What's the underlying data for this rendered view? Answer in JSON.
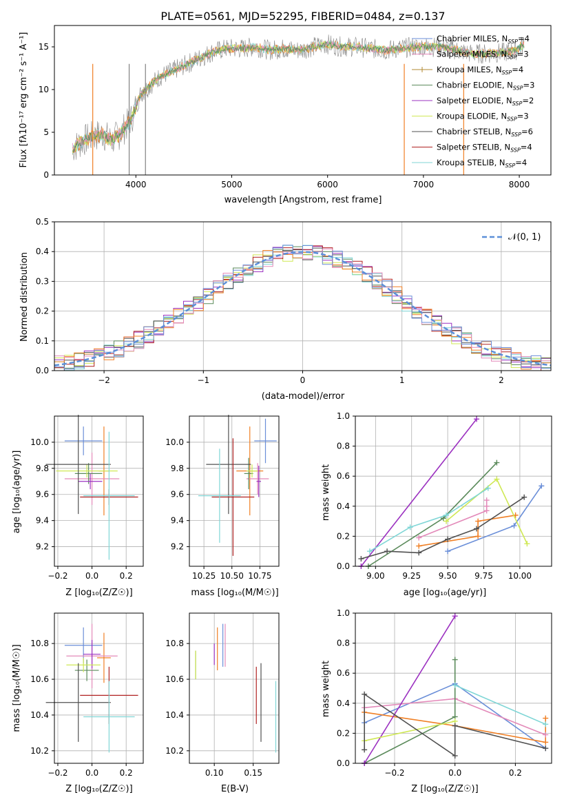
{
  "colors": [
    "#6a8ed8",
    "#e8831a",
    "#8d8d2a",
    "#4f8a4f",
    "#9b30c0",
    "#cfe854",
    "#505050",
    "#b02020",
    "#7fd6d6"
  ],
  "palette": {
    "blue": "#6a8ed8",
    "orange": "#f07f24",
    "pink": "#e389b9",
    "green": "#5a8a5a",
    "purple": "#9b30c0",
    "yellowgreen": "#cfe854",
    "darkgray": "#505050",
    "red": "#b02020",
    "cyan": "#7fd6d6",
    "gray": "#808080"
  },
  "spectrum_label": "PLATE=0561, MJD=52295, FIBERID=0484, z=0.137",
  "panel_titles": {
    "spectrum_xlabel": "wavelength [Angstrom, rest frame]",
    "spectrum_ylabel": "Flux [fλ10⁻¹⁷ erg cm⁻² s⁻¹ A⁻¹]",
    "hist_xlabel": "(data-model)/error",
    "hist_ylabel": "Normed distribution",
    "age_ylabel": "age  [log₁₀(age/yr)]",
    "z_xlabel": "Z [log₁₀(Z/Z☉)]",
    "mass_xlabel": "mass [log₁₀(M/M☉)]",
    "mass_ylabel": "mass [log₁₀(M/M☉)]",
    "mw_ylabel": "mass weight",
    "age_xlabel": "age  [log₁₀(age/yr)]",
    "ebv_xlabel": "E(B-V)",
    "z2_xlabel": "Z [log₁₀(Z/Z☉)]"
  },
  "legend_spectrum": [
    {
      "name": "Chabrier MILES, N",
      "sub": "SSP",
      "tail": "=4"
    },
    {
      "name": "Salpeter MILES, N",
      "sub": "SSP",
      "tail": "=3"
    },
    {
      "name": "Kroupa MILES, N",
      "sub": "SSP",
      "tail": "=4"
    },
    {
      "name": "Chabrier ELODIE, N",
      "sub": "SSP",
      "tail": "=3"
    },
    {
      "name": "Salpeter ELODIE, N",
      "sub": "SSP",
      "tail": "=2"
    },
    {
      "name": "Kroupa ELODIE, N",
      "sub": "SSP",
      "tail": "=3"
    },
    {
      "name": "Chabrier STELIB, N",
      "sub": "SSP",
      "tail": "=6"
    },
    {
      "name": "Salpeter STELIB, N",
      "sub": "SSP",
      "tail": "=4"
    },
    {
      "name": "Kroupa STELIB, N",
      "sub": "SSP",
      "tail": "=4"
    }
  ],
  "legend_spectrum_colors": [
    "#6a8ed8",
    "#e389b9",
    "#b08a30",
    "#5a8a5a",
    "#9b30c0",
    "#cfe854",
    "#505050",
    "#b02020",
    "#7fd6d6"
  ],
  "legend_hist": "𝒩(0, 1)",
  "chart_data": [
    {
      "id": "spectrum",
      "type": "line",
      "title": "PLATE=0561, MJD=52295, FIBERID=0484, z=0.137",
      "xlabel": "wavelength [Angstrom, rest frame]",
      "ylabel": "Flux",
      "xlim": [
        3150,
        8330
      ],
      "ylim": [
        0,
        17.5
      ],
      "xticks": [
        4000,
        5000,
        6000,
        7000,
        8000
      ],
      "yticks": [
        0,
        5,
        10,
        15
      ],
      "x": [
        3350,
        3450,
        3550,
        3650,
        3750,
        3850,
        3950,
        4050,
        4150,
        4250,
        4350,
        4500,
        4650,
        4800,
        4950,
        5100,
        5250,
        5400,
        5550,
        5700,
        5850,
        6000,
        6150,
        6300,
        6450,
        6600,
        6750,
        6900,
        7050,
        7200,
        7350,
        7500,
        7650,
        7800,
        7950,
        8050
      ],
      "y": [
        3.2,
        4.0,
        4.5,
        4.8,
        4.0,
        5.0,
        6.5,
        9.5,
        10.5,
        11.5,
        12.0,
        12.8,
        13.6,
        14.4,
        14.8,
        14.8,
        15.0,
        14.6,
        14.8,
        14.6,
        15.0,
        15.3,
        15.0,
        15.0,
        14.8,
        14.6,
        14.8,
        15.0,
        15.0,
        15.0,
        14.6,
        14.2,
        14.2,
        14.3,
        14.5,
        15.3
      ],
      "grid": false,
      "legend": "top-right"
    },
    {
      "id": "hist",
      "type": "step",
      "xlabel": "(data-model)/error",
      "ylabel": "Normed distribution",
      "xlim": [
        -2.5,
        2.5
      ],
      "ylim": [
        0,
        0.5
      ],
      "xticks": [
        -2,
        -1,
        0,
        1,
        2
      ],
      "yticks": [
        0.0,
        0.1,
        0.2,
        0.3,
        0.4,
        0.5
      ],
      "bin_width": 0.1,
      "grid": true,
      "legend": "top-right"
    },
    {
      "id": "z_age",
      "type": "errorbar",
      "xlabel": "Z [log10(Z/Zsun)]",
      "ylabel": "age [log10(age/yr)]",
      "xlim": [
        -0.22,
        0.3
      ],
      "ylim": [
        9.05,
        10.2
      ],
      "xticks": [
        -0.2,
        0.0,
        0.2
      ],
      "yticks": [
        9.2,
        9.4,
        9.6,
        9.8,
        10.0
      ],
      "points": [
        {
          "x": -0.05,
          "y": 10.01,
          "xerr": 0.11,
          "yerr": 0.11,
          "c": "blue"
        },
        {
          "x": 0.07,
          "y": 9.78,
          "xerr": 0.03,
          "yerr": 0.34,
          "c": "orange"
        },
        {
          "x": 0.0,
          "y": 9.72,
          "xerr": 0.16,
          "yerr": 0.2,
          "c": "pink"
        },
        {
          "x": -0.02,
          "y": 9.76,
          "xerr": 0.08,
          "yerr": 0.08,
          "c": "green"
        },
        {
          "x": -0.01,
          "y": 9.7,
          "xerr": 0.07,
          "yerr": 0.06,
          "c": "purple"
        },
        {
          "x": -0.03,
          "y": 9.78,
          "xerr": 0.18,
          "yerr": 0.05,
          "c": "yellowgreen"
        },
        {
          "x": -0.08,
          "y": 9.83,
          "xerr": 0.19,
          "yerr": 0.38,
          "c": "darkgray"
        },
        {
          "x": 0.1,
          "y": 9.58,
          "xerr": 0.17,
          "yerr": 0.06,
          "c": "red"
        },
        {
          "x": 0.1,
          "y": 9.59,
          "xerr": 0.15,
          "yerr": 0.49,
          "c": "cyan"
        }
      ]
    },
    {
      "id": "mass_age",
      "type": "errorbar",
      "xlabel": "mass [log10(M/Msun)]",
      "ylabel": "",
      "xlim": [
        10.12,
        10.92
      ],
      "ylim": [
        9.05,
        10.2
      ],
      "xticks": [
        10.25,
        10.5,
        10.75
      ],
      "yticks": [
        9.2,
        9.4,
        9.6,
        9.8,
        10.0
      ],
      "points": [
        {
          "x": 10.8,
          "y": 10.01,
          "xerr": 0.1,
          "yerr": 0.17,
          "c": "blue"
        },
        {
          "x": 10.66,
          "y": 9.78,
          "xerr": 0.12,
          "yerr": 0.34,
          "c": "orange"
        },
        {
          "x": 10.73,
          "y": 9.72,
          "xerr": 0.1,
          "yerr": 0.12,
          "c": "pink"
        },
        {
          "x": 10.65,
          "y": 9.76,
          "xerr": 0.04,
          "yerr": 0.12,
          "c": "green"
        },
        {
          "x": 10.74,
          "y": 9.7,
          "xerr": 0.02,
          "yerr": 0.12,
          "c": "purple"
        },
        {
          "x": 10.68,
          "y": 9.78,
          "xerr": 0.05,
          "yerr": 0.05,
          "c": "yellowgreen"
        },
        {
          "x": 10.47,
          "y": 9.83,
          "xerr": 0.2,
          "yerr": 0.38,
          "c": "darkgray"
        },
        {
          "x": 10.51,
          "y": 9.58,
          "xerr": 0.19,
          "yerr": 0.45,
          "c": "red"
        },
        {
          "x": 10.39,
          "y": 9.59,
          "xerr": 0.19,
          "yerr": 0.36,
          "c": "cyan"
        }
      ]
    },
    {
      "id": "age_mw",
      "type": "line",
      "xlabel": "age [log10(age/yr)]",
      "ylabel": "mass weight",
      "xlim": [
        8.86,
        10.22
      ],
      "ylim": [
        0,
        1
      ],
      "xticks": [
        9.0,
        9.25,
        9.5,
        9.75,
        10.0
      ],
      "yticks": [
        0.0,
        0.2,
        0.4,
        0.6,
        0.8,
        1.0
      ],
      "grid": true,
      "series": [
        {
          "c": "blue",
          "x": [
            9.5,
            9.96,
            10.15
          ],
          "y": [
            0.1,
            0.27,
            0.535
          ]
        },
        {
          "c": "orange",
          "x": [
            9.3,
            9.71,
            9.71,
            9.97
          ],
          "y": [
            0.135,
            0.2,
            0.3,
            0.34
          ]
        },
        {
          "c": "pink",
          "x": [
            9.3,
            9.77,
            9.77,
            9.77
          ],
          "y": [
            0.19,
            0.37,
            0.4,
            0.44
          ]
        },
        {
          "c": "green",
          "x": [
            8.95,
            9.47,
            9.84
          ],
          "y": [
            0.0,
            0.32,
            0.69
          ]
        },
        {
          "c": "purple",
          "x": [
            8.9,
            9.7
          ],
          "y": [
            0.0,
            0.98
          ]
        },
        {
          "c": "yellowgreen",
          "x": [
            9.49,
            9.84,
            10.05
          ],
          "y": [
            0.3,
            0.58,
            0.15
          ]
        },
        {
          "c": "darkgray",
          "x": [
            8.9,
            9.08,
            9.3,
            9.5,
            9.7,
            10.03
          ],
          "y": [
            0.05,
            0.1,
            0.09,
            0.18,
            0.25,
            0.46
          ]
        },
        {
          "c": "cyan",
          "x": [
            8.96,
            9.24,
            9.49,
            9.78
          ],
          "y": [
            0.1,
            0.26,
            0.34,
            0.52
          ]
        }
      ]
    },
    {
      "id": "z_mass",
      "type": "errorbar",
      "xlabel": "Z [log10(Z/Zsun)]",
      "ylabel": "mass [log10(M/Msun)]",
      "xlim": [
        -0.22,
        0.3
      ],
      "ylim": [
        10.13,
        10.97
      ],
      "xticks": [
        -0.2,
        0.0,
        0.2
      ],
      "yticks": [
        10.2,
        10.4,
        10.6,
        10.8
      ],
      "points": [
        {
          "x": -0.05,
          "y": 10.79,
          "xerr": 0.11,
          "yerr": 0.1,
          "c": "blue"
        },
        {
          "x": 0.07,
          "y": 10.72,
          "xerr": 0.04,
          "yerr": 0.14,
          "c": "orange"
        },
        {
          "x": 0.0,
          "y": 10.73,
          "xerr": 0.15,
          "yerr": 0.18,
          "c": "pink"
        },
        {
          "x": -0.03,
          "y": 10.65,
          "xerr": 0.07,
          "yerr": 0.06,
          "c": "green"
        },
        {
          "x": 0.0,
          "y": 10.74,
          "xerr": 0.05,
          "yerr": 0.08,
          "c": "purple"
        },
        {
          "x": -0.05,
          "y": 10.68,
          "xerr": 0.1,
          "yerr": 0.04,
          "c": "yellowgreen"
        },
        {
          "x": -0.08,
          "y": 10.47,
          "xerr": 0.19,
          "yerr": 0.22,
          "c": "darkgray"
        },
        {
          "x": 0.1,
          "y": 10.51,
          "xerr": 0.17,
          "yerr": 0.16,
          "c": "red"
        },
        {
          "x": 0.1,
          "y": 10.39,
          "xerr": 0.15,
          "yerr": 0.2,
          "c": "cyan"
        }
      ]
    },
    {
      "id": "ebv_mass",
      "type": "errorbar",
      "xlabel": "E(B-V)",
      "ylabel": "",
      "xlim": [
        0.068,
        0.183
      ],
      "ylim": [
        10.13,
        10.97
      ],
      "xticks": [
        0.1,
        0.15
      ],
      "yticks": [
        10.2,
        10.4,
        10.6,
        10.8
      ],
      "points": [
        {
          "x": 0.111,
          "y": 10.79,
          "xerr": 0,
          "yerr": 0.12,
          "c": "blue"
        },
        {
          "x": 0.104,
          "y": 10.77,
          "xerr": 0,
          "yerr": 0.12,
          "c": "orange"
        },
        {
          "x": 0.114,
          "y": 10.79,
          "xerr": 0,
          "yerr": 0.12,
          "c": "pink"
        },
        {
          "x": 0.076,
          "y": 10.68,
          "xerr": 0,
          "yerr": 0.08,
          "c": "green"
        },
        {
          "x": 0.1,
          "y": 10.74,
          "xerr": 0,
          "yerr": 0.06,
          "c": "purple"
        },
        {
          "x": 0.076,
          "y": 10.68,
          "xerr": 0,
          "yerr": 0.08,
          "c": "yellowgreen"
        },
        {
          "x": 0.16,
          "y": 10.47,
          "xerr": 0,
          "yerr": 0.22,
          "c": "darkgray"
        },
        {
          "x": 0.154,
          "y": 10.51,
          "xerr": 0,
          "yerr": 0.16,
          "c": "red"
        },
        {
          "x": 0.179,
          "y": 10.39,
          "xerr": 0,
          "yerr": 0.2,
          "c": "cyan"
        }
      ]
    },
    {
      "id": "z_mw",
      "type": "line",
      "xlabel": "Z [log10(Z/Zsun)]",
      "ylabel": "mass weight",
      "xlim": [
        -0.33,
        0.32
      ],
      "ylim": [
        0,
        1
      ],
      "xticks": [
        -0.2,
        0.0,
        0.2
      ],
      "yticks": [
        0.0,
        0.2,
        0.4,
        0.6,
        0.8,
        1.0
      ],
      "grid": true,
      "series": [
        {
          "c": "blue",
          "x": [
            -0.3,
            0.0,
            0.3
          ],
          "y": [
            0.27,
            0.53,
            0.1
          ]
        },
        {
          "c": "orange",
          "x": [
            -0.3,
            0.0,
            0.3,
            0.3
          ],
          "y": [
            0.34,
            0.25,
            0.14,
            0.3
          ]
        },
        {
          "c": "pink",
          "x": [
            -0.3,
            0.0,
            0.3
          ],
          "y": [
            0.37,
            0.43,
            0.19
          ]
        },
        {
          "c": "green",
          "x": [
            -0.3,
            0.0,
            0.0
          ],
          "y": [
            0.0,
            0.31,
            0.69
          ]
        },
        {
          "c": "purple",
          "x": [
            -0.3,
            0.0
          ],
          "y": [
            0.0,
            0.98
          ]
        },
        {
          "c": "yellowgreen",
          "x": [
            -0.3,
            0.0
          ],
          "y": [
            0.15,
            0.28
          ]
        },
        {
          "c": "darkgray",
          "x": [
            -0.3,
            -0.3,
            0.0,
            0.0,
            0.3
          ],
          "y": [
            0.09,
            0.46,
            0.05,
            0.25,
            0.1
          ]
        },
        {
          "c": "cyan",
          "x": [
            0.0,
            0.3
          ],
          "y": [
            0.52,
            0.26
          ]
        }
      ]
    }
  ]
}
